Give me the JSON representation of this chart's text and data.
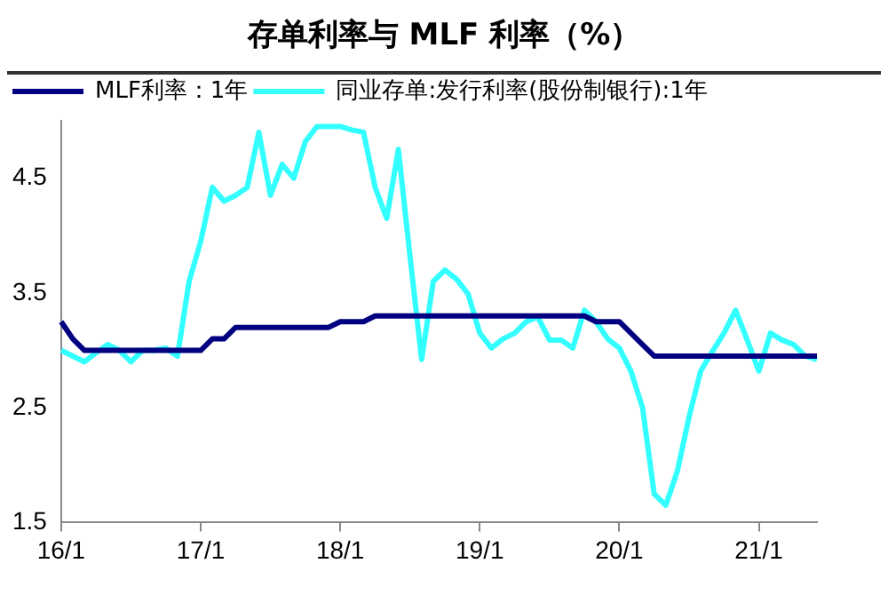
{
  "chart_data": {
    "type": "line",
    "title": "存单利率与 MLF 利率（%）",
    "legend": "top left",
    "grid": false,
    "marker": "none",
    "line_style": "solid",
    "categories": [
      "16/1",
      null,
      null,
      null,
      null,
      null,
      null,
      null,
      null,
      null,
      null,
      null,
      "17/1",
      null,
      null,
      null,
      null,
      null,
      null,
      null,
      null,
      null,
      null,
      null,
      "18/1",
      null,
      null,
      null,
      null,
      null,
      null,
      null,
      null,
      null,
      null,
      null,
      "19/1",
      null,
      null,
      null,
      null,
      null,
      null,
      null,
      null,
      null,
      null,
      null,
      "20/1",
      null,
      null,
      null,
      null,
      null,
      null,
      null,
      null,
      null,
      null,
      null,
      "21/1",
      null,
      null,
      null,
      null,
      null
    ],
    "ylim": [
      1.5,
      5.0
    ],
    "yticks": [
      1.5,
      2.5,
      3.5,
      4.5
    ],
    "series": [
      {
        "name": "MLF利率：1年",
        "color": "#000080",
        "values": [
          3.25,
          3.1,
          3.0,
          3.0,
          3.0,
          3.0,
          3.0,
          3.0,
          3.0,
          3.0,
          3.0,
          3.0,
          3.0,
          3.1,
          3.1,
          3.2,
          3.2,
          3.2,
          3.2,
          3.2,
          3.2,
          3.2,
          3.2,
          3.2,
          3.25,
          3.25,
          3.25,
          3.3,
          3.3,
          3.3,
          3.3,
          3.3,
          3.3,
          3.3,
          3.3,
          3.3,
          3.3,
          3.3,
          3.3,
          3.3,
          3.3,
          3.3,
          3.3,
          3.3,
          3.3,
          3.3,
          3.25,
          3.25,
          3.25,
          3.15,
          3.05,
          2.95,
          2.95,
          2.95,
          2.95,
          2.95,
          2.95,
          2.95,
          2.95,
          2.95,
          2.95,
          2.95,
          2.95,
          2.95,
          2.95,
          2.95
        ]
      },
      {
        "name": "同业存单:发行利率(股份制银行):1年",
        "color": "#33ffff",
        "values": [
          3.0,
          2.95,
          2.9,
          2.98,
          3.05,
          3.0,
          2.9,
          3.0,
          3.0,
          3.02,
          2.95,
          3.6,
          3.95,
          4.42,
          4.3,
          4.35,
          4.42,
          4.9,
          4.35,
          4.62,
          4.5,
          4.82,
          4.95,
          4.95,
          4.95,
          4.92,
          4.9,
          4.42,
          4.15,
          4.75,
          3.82,
          2.92,
          3.6,
          3.7,
          3.62,
          3.49,
          3.15,
          3.02,
          3.1,
          3.15,
          3.25,
          3.29,
          3.09,
          3.09,
          3.02,
          3.35,
          3.25,
          3.1,
          3.02,
          2.82,
          2.5,
          1.75,
          1.65,
          1.95,
          2.42,
          2.82,
          2.99,
          3.15,
          3.35,
          3.09,
          2.82,
          3.15,
          3.09,
          3.05,
          2.95,
          2.92
        ]
      }
    ]
  }
}
